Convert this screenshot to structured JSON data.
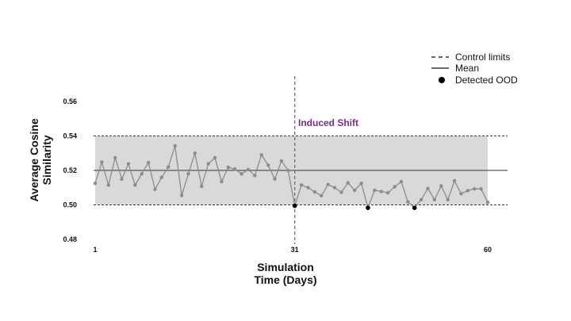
{
  "chart_data": {
    "type": "line",
    "xlabel_lines": [
      "Simulation",
      "Time (Days)"
    ],
    "ylabel_lines": [
      "Average Cosine",
      "Similarity"
    ],
    "xlim": [
      1,
      60
    ],
    "ylim": [
      0.48,
      0.56
    ],
    "xticks": [
      1,
      31,
      60
    ],
    "yticks": [
      "0.56",
      "0.54",
      "0.52",
      "0.50",
      "0.48"
    ],
    "control_limits": {
      "upper": 0.54,
      "lower": 0.5
    },
    "mean": 0.52,
    "shift": {
      "x": 31,
      "label": "Induced Shift"
    },
    "series": [
      {
        "x": [
          1,
          2,
          3,
          4,
          5,
          6,
          7,
          8,
          9,
          10,
          11,
          12,
          13,
          14,
          15,
          16,
          17,
          18,
          19,
          20,
          21,
          22,
          23,
          24,
          25,
          26,
          27,
          28,
          29,
          30,
          31,
          32,
          33,
          34,
          35,
          36,
          37,
          38,
          39,
          40,
          41,
          42,
          43,
          44,
          45,
          46,
          47,
          48,
          49,
          50,
          51,
          52,
          53,
          54,
          55,
          56,
          57,
          58,
          59,
          60
        ],
        "values": [
          0.5125,
          0.5248,
          0.5115,
          0.5273,
          0.515,
          0.5238,
          0.5115,
          0.518,
          0.5245,
          0.509,
          0.516,
          0.522,
          0.5343,
          0.5055,
          0.518,
          0.53,
          0.5108,
          0.5238,
          0.5273,
          0.5135,
          0.5218,
          0.5208,
          0.518,
          0.5205,
          0.517,
          0.529,
          0.523,
          0.515,
          0.5255,
          0.52,
          0.4995,
          0.5115,
          0.51,
          0.5075,
          0.5053,
          0.5118,
          0.51,
          0.5073,
          0.5128,
          0.5085,
          0.5125,
          0.4983,
          0.5085,
          0.5078,
          0.507,
          0.5105,
          0.5135,
          0.5018,
          0.4983,
          0.503,
          0.5095,
          0.503,
          0.511,
          0.503,
          0.514,
          0.5065,
          0.5083,
          0.5093,
          0.5093,
          0.5015
        ]
      }
    ],
    "detected_ood": [
      {
        "x": 31,
        "y": 0.4995
      },
      {
        "x": 42,
        "y": 0.4983
      },
      {
        "x": 49,
        "y": 0.4983
      }
    ],
    "legend": {
      "placement": "top-right",
      "items": [
        {
          "label": "Control limits",
          "style": "dashed"
        },
        {
          "label": "Mean",
          "style": "solid"
        },
        {
          "label": "Detected OOD",
          "style": "dot"
        }
      ]
    },
    "colors": {
      "band": "#d9d9d9",
      "series": "#8c8c8c",
      "shift": "#8e44ad",
      "shift_text": "#7b2d8e",
      "ood": "#000000",
      "lines": "#333333"
    }
  }
}
